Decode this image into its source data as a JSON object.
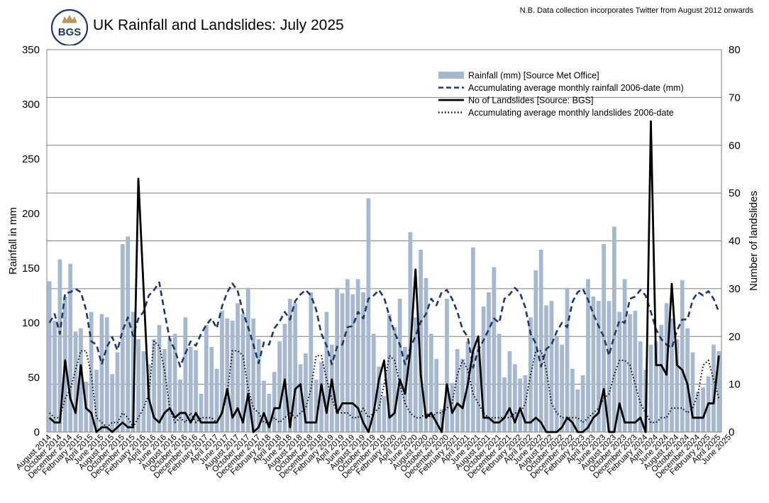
{
  "header": {
    "title": "UK Rainfall and Landslides: July 2025",
    "note": "N.B. Data collection incorporates Twitter from August 2012 onwards",
    "logo_text": "BGS"
  },
  "colors": {
    "bars": "#a6b8cf",
    "rain_avg": "#1f3864",
    "landslides": "#000000",
    "ls_avg": "#000000",
    "grid": "#7f7f7f",
    "logo_navy": "#1f3864",
    "logo_gold": "#b8975a"
  },
  "chart_data": {
    "type": "bar",
    "title": "UK Rainfall and Landslides: July 2025",
    "ylabel": "Rainfall in mm",
    "y2label": "Number of landslides",
    "ylim": [
      0,
      350
    ],
    "yticks": [
      0,
      50,
      100,
      150,
      200,
      250,
      300,
      350
    ],
    "y2lim": [
      0,
      80
    ],
    "y2ticks": [
      0,
      10,
      20,
      30,
      40,
      50,
      60,
      70,
      80
    ],
    "grid": "horizontal, right axis",
    "legend_position": "top-right",
    "start": "2014-08",
    "x_tick_labels": [
      "August 2014",
      "October 2014",
      "December 2014",
      "February 2015",
      "April 2015",
      "June 2015",
      "August 2015",
      "October 2015",
      "December 2015",
      "February 2016",
      "April 2016",
      "June 2016",
      "August 2016",
      "October 2016",
      "December 2016",
      "February 2017",
      "April 2017",
      "June 2017",
      "August 2017",
      "October 2017",
      "December 2017",
      "February 2018",
      "April 2018",
      "June 2018",
      "August 2018",
      "October 2018",
      "December 2018",
      "February 2019",
      "April 2019",
      "June 2019",
      "August 2019",
      "October 2019",
      "December 2019",
      "February 2020",
      "April 2020",
      "June 2020",
      "August 2020",
      "October 2020",
      "December 2020",
      "February 2021",
      "April 2021",
      "June 2021",
      "August 2021",
      "October 2021",
      "December 2021",
      "February 2022",
      "April 2022",
      "June 2022",
      "August 2022",
      "October 2022",
      "December 2022",
      "February 2023",
      "April 2023",
      "June 2023",
      "August 2023",
      "October 2023",
      "December 2023",
      "February 2024",
      "April 2024",
      "June 2024",
      "August 2024",
      "October 2024",
      "December 2024",
      "February 2025",
      "April 2025",
      "June 2025"
    ],
    "series": [
      {
        "name": "Rainfall (mm) [Source Met Office]",
        "type": "bar",
        "axis": "left",
        "values": [
          138,
          102,
          158,
          124,
          154,
          92,
          95,
          46,
          110,
          57,
          108,
          105,
          53,
          73,
          172,
          179,
          110,
          85,
          74,
          62,
          85,
          98,
          76,
          86,
          90,
          48,
          105,
          78,
          75,
          35,
          98,
          78,
          58,
          111,
          104,
          102,
          118,
          108,
          132,
          104,
          85,
          47,
          35,
          55,
          83,
          99,
          122,
          118,
          62,
          72,
          128,
          48,
          64,
          110,
          80,
          132,
          127,
          140,
          126,
          140,
          128,
          214,
          90,
          60,
          33,
          108,
          96,
          122,
          78,
          183,
          105,
          167,
          141,
          90,
          67,
          21,
          122,
          45,
          76,
          67,
          83,
          169,
          79,
          115,
          128,
          151,
          90,
          50,
          74,
          62,
          49,
          52,
          105,
          148,
          167,
          116,
          120,
          87,
          80,
          132,
          58,
          39,
          52,
          140,
          124,
          120,
          172,
          120,
          188,
          110,
          140,
          108,
          111,
          83,
          57,
          80,
          83,
          98,
          118,
          104,
          85,
          139,
          95,
          73,
          37,
          41,
          51,
          80,
          74
        ]
      },
      {
        "name": "Accumulating average monthly rainfall 2006-date (mm)",
        "type": "line",
        "dash": "dashed",
        "axis": "left",
        "values": [
          100,
          108,
          90,
          127,
          128,
          131,
          128,
          112,
          83,
          80,
          62,
          78,
          87,
          75,
          93,
          105,
          88,
          104,
          110,
          125,
          130,
          137,
          110,
          85,
          75,
          60,
          72,
          83,
          79,
          90,
          98,
          104,
          95,
          115,
          128,
          136,
          129,
          110,
          96,
          80,
          63,
          82,
          80,
          95,
          101,
          110,
          103,
          120,
          126,
          130,
          125,
          112,
          90,
          79,
          62,
          78,
          80,
          96,
          97,
          110,
          104,
          122,
          125,
          130,
          123,
          106,
          91,
          80,
          62,
          77,
          88,
          101,
          108,
          122,
          116,
          128,
          130,
          122,
          110,
          94,
          87,
          59,
          75,
          84,
          94,
          104,
          100,
          122,
          126,
          132,
          127,
          114,
          90,
          81,
          60,
          76,
          80,
          92,
          100,
          96,
          119,
          128,
          131,
          121,
          108,
          97,
          87,
          70,
          88,
          102,
          100,
          122,
          124,
          130,
          125,
          110,
          94,
          85,
          80,
          77,
          93,
          103,
          103,
          121,
          128,
          125,
          129,
          122,
          110,
          95,
          80,
          65,
          77,
          74,
          100,
          94,
          90,
          90,
          101,
          102,
          120
        ]
      },
      {
        "name": "No of Landslides [Source: BGS]",
        "type": "line",
        "dash": "solid",
        "axis": "right",
        "values": [
          3,
          2,
          2,
          15,
          7,
          4,
          14,
          5,
          4,
          0,
          1,
          1,
          0,
          1,
          2,
          1,
          1,
          53,
          30,
          7,
          3,
          2,
          4,
          5,
          3,
          4,
          4,
          2,
          4,
          2,
          2,
          2,
          2,
          4,
          9,
          3,
          5,
          2,
          8,
          0,
          1,
          4,
          1,
          5,
          5,
          11,
          1,
          9,
          10,
          2,
          2,
          2,
          10,
          4,
          11,
          4,
          6,
          6,
          6,
          5,
          2,
          0,
          4,
          11,
          15,
          3,
          4,
          11,
          8,
          17,
          34,
          12,
          3,
          4,
          2,
          0,
          10,
          4,
          6,
          5,
          10,
          17,
          20,
          3,
          3,
          2,
          2,
          3,
          5,
          2,
          5,
          2,
          2,
          3,
          2,
          0,
          0,
          0,
          1,
          3,
          2,
          0,
          0,
          1,
          3,
          4,
          9,
          0,
          0,
          6,
          2,
          2,
          2,
          3,
          0,
          65,
          14,
          14,
          12,
          31,
          14,
          13,
          10,
          3,
          3,
          3,
          6,
          6,
          16,
          6,
          18,
          6,
          6,
          5,
          0,
          0,
          6,
          2
        ]
      },
      {
        "name": "Accumulating average monthly landslides 2006-date",
        "type": "line",
        "dash": "dotted",
        "axis": "right",
        "values": [
          4,
          3,
          3,
          7,
          9,
          13,
          17,
          17,
          12,
          3,
          2,
          1,
          2,
          2,
          4,
          3,
          1,
          3,
          5,
          8,
          19,
          18,
          13,
          5,
          2,
          3,
          2,
          4,
          2,
          3,
          3,
          3,
          2,
          4,
          8,
          17,
          17,
          16,
          9,
          5,
          4,
          2,
          2,
          3,
          2,
          3,
          4,
          3,
          4,
          5,
          9,
          16,
          16,
          11,
          7,
          4,
          4,
          4,
          3,
          3,
          5,
          3,
          4,
          5,
          10,
          16,
          15,
          10,
          6,
          4,
          3,
          3,
          4,
          3,
          4,
          4,
          5,
          6,
          12,
          15,
          13,
          8,
          6,
          4,
          3,
          3,
          3,
          3,
          3,
          4,
          4,
          6,
          12,
          17,
          17,
          13,
          6,
          4,
          3,
          3,
          3,
          3,
          2,
          3,
          4,
          5,
          7,
          8,
          12,
          15,
          15,
          14,
          10,
          6,
          4,
          2,
          2,
          3,
          3,
          5,
          5,
          5,
          4,
          5,
          8,
          14,
          15,
          11,
          7,
          5,
          3,
          2,
          2,
          3,
          3,
          4,
          6,
          9,
          17,
          14,
          10,
          6,
          4,
          2
        ]
      }
    ]
  }
}
